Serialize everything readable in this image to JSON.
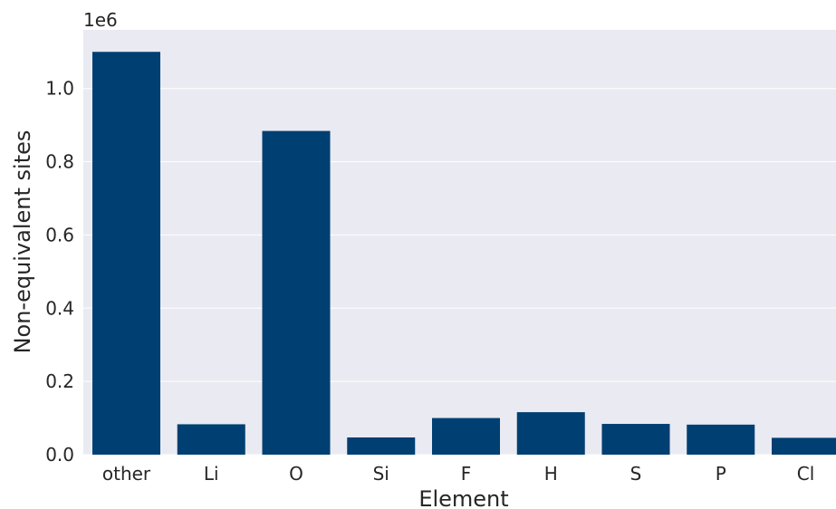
{
  "chart_data": {
    "type": "bar",
    "categories": [
      "other",
      "Li",
      "O",
      "Si",
      "F",
      "H",
      "S",
      "P",
      "Cl"
    ],
    "values": [
      1100000,
      83000,
      884000,
      47000,
      100000,
      116000,
      84000,
      82000,
      46000
    ],
    "title": "",
    "xlabel": "Element",
    "ylabel": "Non-equivalent sites",
    "y_scale_label": "1e6",
    "ylim": [
      0,
      1160000
    ],
    "yticks": [
      0,
      200000,
      400000,
      600000,
      800000,
      1000000
    ],
    "ytick_labels": [
      "0.0",
      "0.2",
      "0.4",
      "0.6",
      "0.8",
      "1.0"
    ],
    "grid": true,
    "legend": "none",
    "colors": {
      "bar": "#003f72",
      "plot_background": "#eaeaf2",
      "grid": "#ffffff",
      "text": "#262626"
    }
  }
}
